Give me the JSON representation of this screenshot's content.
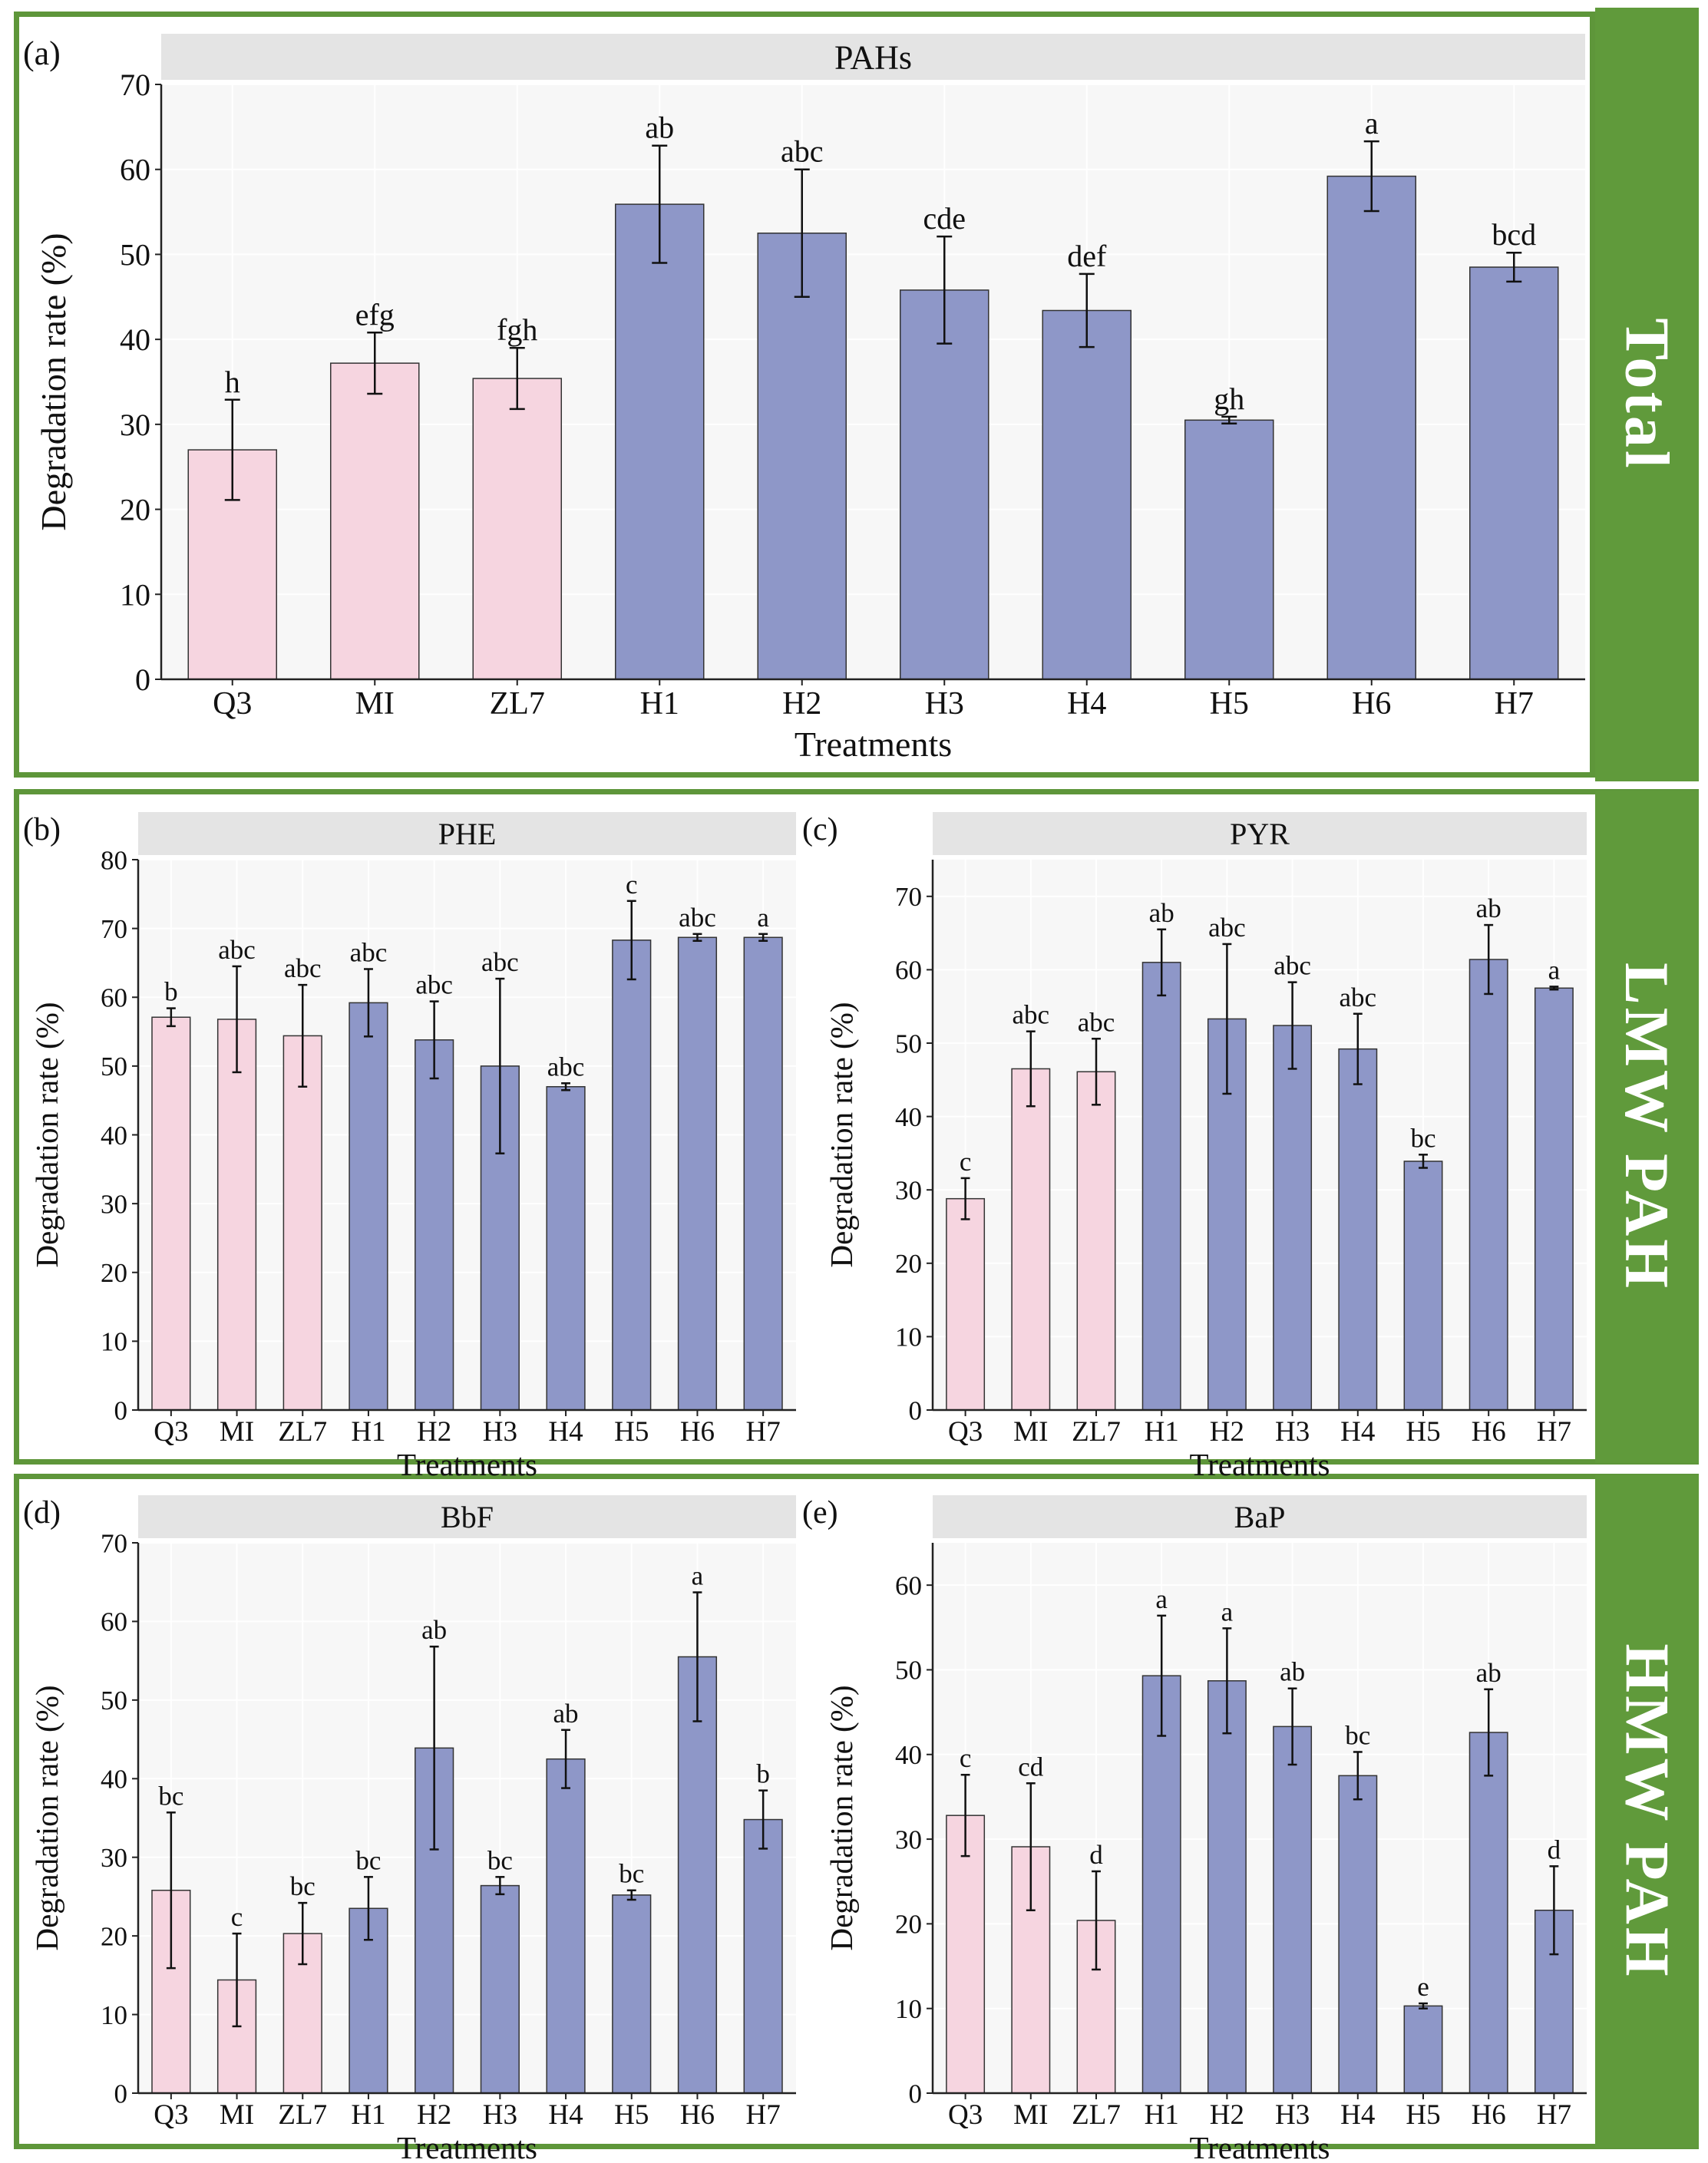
{
  "sections": {
    "total": "Total",
    "lmw": "LMW PAH",
    "hmw": "HMW PAH"
  },
  "colors": {
    "frame_green": "#5e963a",
    "pink_bar": "#f6d5e0",
    "blue_bar": "#8e97c8",
    "strip": "#e4e4e4",
    "panel_bg": "#f7f7f7"
  },
  "chart_data": [
    {
      "id": "a",
      "panel_label": "(a)",
      "type": "bar",
      "title": "PAHs",
      "xlabel": "Treatments",
      "ylabel": "Degradation rate (%)",
      "ylim": [
        0,
        70
      ],
      "yticks": [
        0,
        10,
        20,
        30,
        40,
        50,
        60,
        70
      ],
      "categories": [
        "Q3",
        "MI",
        "ZL7",
        "H1",
        "H2",
        "H3",
        "H4",
        "H5",
        "H6",
        "H7"
      ],
      "values": [
        27,
        37.2,
        35.4,
        55.9,
        52.5,
        45.8,
        43.4,
        30.5,
        59.2,
        48.5
      ],
      "errors": [
        5.9,
        3.6,
        3.6,
        6.9,
        7.5,
        6.3,
        4.3,
        0.4,
        4.1,
        1.7
      ],
      "groups": [
        "h",
        "efg",
        "fgh",
        "ab",
        "abc",
        "cde",
        "def",
        "gh",
        "a",
        "bcd"
      ],
      "bar_colors": [
        "pink",
        "pink",
        "pink",
        "blue",
        "blue",
        "blue",
        "blue",
        "blue",
        "blue",
        "blue"
      ]
    },
    {
      "id": "b",
      "panel_label": "(b)",
      "type": "bar",
      "title": "PHE",
      "xlabel": "Treatments",
      "ylabel": "Degradation rate (%)",
      "ylim": [
        0,
        80
      ],
      "yticks": [
        0,
        10,
        20,
        30,
        40,
        50,
        60,
        70,
        80
      ],
      "categories": [
        "Q3",
        "MI",
        "ZL7",
        "H1",
        "H2",
        "H3",
        "H4",
        "H5",
        "H6",
        "H7"
      ],
      "values": [
        57.1,
        56.8,
        54.4,
        59.2,
        53.8,
        50,
        47,
        68.3,
        68.7,
        68.7
      ],
      "errors": [
        1.3,
        7.7,
        7.4,
        4.9,
        5.6,
        12.7,
        0.5,
        5.7,
        0.5,
        0.5
      ],
      "groups": [
        "b",
        "abc",
        "abc",
        "abc",
        "abc",
        "abc",
        "abc",
        "c",
        "abc",
        "a"
      ],
      "bar_colors": [
        "pink",
        "pink",
        "pink",
        "blue",
        "blue",
        "blue",
        "blue",
        "blue",
        "blue",
        "blue"
      ]
    },
    {
      "id": "c",
      "panel_label": "(c)",
      "type": "bar",
      "title": "PYR",
      "xlabel": "Treatments",
      "ylabel": "Degradation rate (%)",
      "ylim": [
        0,
        75
      ],
      "yticks": [
        0,
        10,
        20,
        30,
        40,
        50,
        60,
        70
      ],
      "categories": [
        "Q3",
        "MI",
        "ZL7",
        "H1",
        "H2",
        "H3",
        "H4",
        "H5",
        "H6",
        "H7"
      ],
      "values": [
        28.8,
        46.5,
        46.1,
        61,
        53.3,
        52.4,
        49.2,
        33.9,
        61.4,
        57.5
      ],
      "errors": [
        2.8,
        5.1,
        4.5,
        4.5,
        10.2,
        5.9,
        4.8,
        0.9,
        4.7,
        0.2
      ],
      "groups": [
        "c",
        "abc",
        "abc",
        "ab",
        "abc",
        "abc",
        "abc",
        "bc",
        "ab",
        "a"
      ],
      "bar_colors": [
        "pink",
        "pink",
        "pink",
        "blue",
        "blue",
        "blue",
        "blue",
        "blue",
        "blue",
        "blue"
      ]
    },
    {
      "id": "d",
      "panel_label": "(d)",
      "type": "bar",
      "title": "BbF",
      "xlabel": "Treatments",
      "ylabel": "Degradation rate (%)",
      "ylim": [
        0,
        70
      ],
      "yticks": [
        0,
        10,
        20,
        30,
        40,
        50,
        60,
        70
      ],
      "categories": [
        "Q3",
        "MI",
        "ZL7",
        "H1",
        "H2",
        "H3",
        "H4",
        "H5",
        "H6",
        "H7"
      ],
      "values": [
        25.8,
        14.4,
        20.3,
        23.5,
        43.9,
        26.4,
        42.5,
        25.2,
        55.5,
        34.8
      ],
      "errors": [
        9.9,
        5.9,
        3.9,
        4,
        12.9,
        1.1,
        3.7,
        0.6,
        8.2,
        3.7
      ],
      "groups": [
        "bc",
        "c",
        "bc",
        "bc",
        "ab",
        "bc",
        "ab",
        "bc",
        "a",
        "b"
      ],
      "bar_colors": [
        "pink",
        "pink",
        "pink",
        "blue",
        "blue",
        "blue",
        "blue",
        "blue",
        "blue",
        "blue"
      ]
    },
    {
      "id": "e",
      "panel_label": "(e)",
      "type": "bar",
      "title": "BaP",
      "xlabel": "Treatments",
      "ylabel": "Degradation rate (%)",
      "ylim": [
        0,
        65
      ],
      "yticks": [
        0,
        10,
        20,
        30,
        40,
        50,
        60
      ],
      "categories": [
        "Q3",
        "MI",
        "ZL7",
        "H1",
        "H2",
        "H3",
        "H4",
        "H5",
        "H6",
        "H7"
      ],
      "values": [
        32.8,
        29.1,
        20.4,
        49.3,
        48.7,
        43.3,
        37.5,
        10.3,
        42.6,
        21.6
      ],
      "errors": [
        4.8,
        7.5,
        5.8,
        7.1,
        6.2,
        4.5,
        2.8,
        0.3,
        5.1,
        5.2
      ],
      "groups": [
        "c",
        "cd",
        "d",
        "a",
        "a",
        "ab",
        "bc",
        "e",
        "ab",
        "d"
      ],
      "bar_colors": [
        "pink",
        "pink",
        "pink",
        "blue",
        "blue",
        "blue",
        "blue",
        "blue",
        "blue",
        "blue"
      ]
    }
  ]
}
